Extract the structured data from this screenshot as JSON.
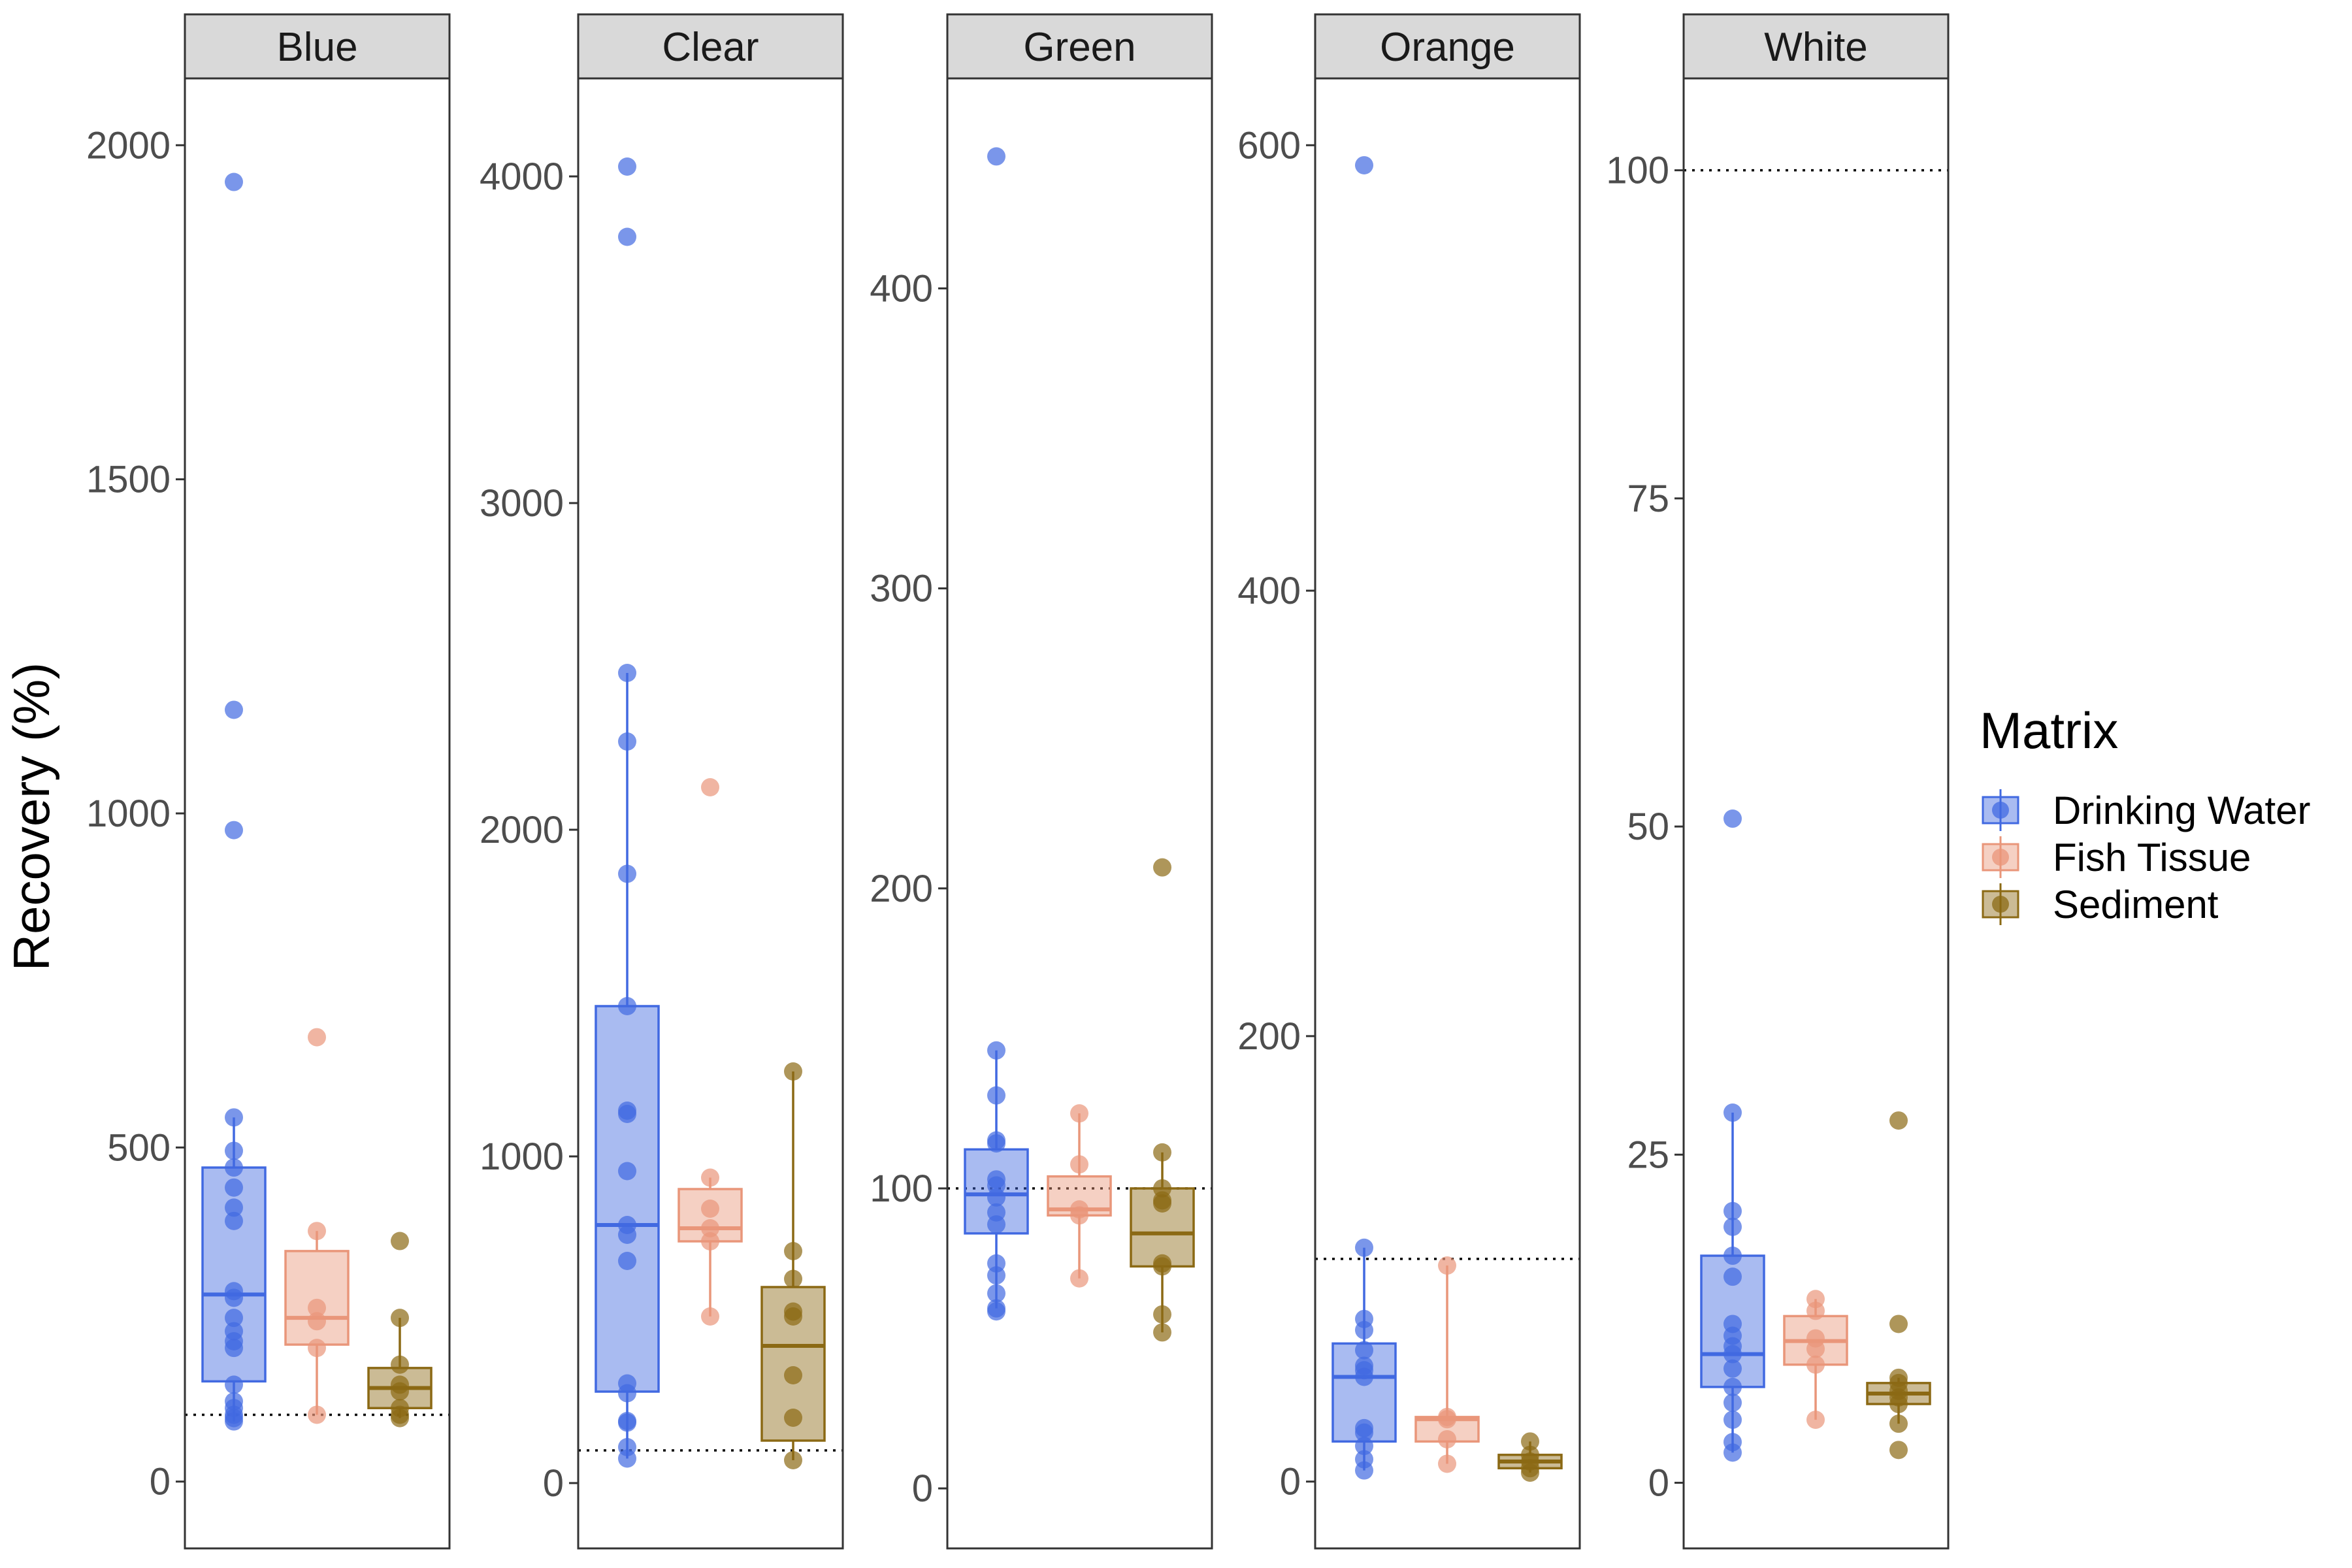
{
  "chart_data": {
    "type": "box",
    "ylabel": "Recovery (%)",
    "legend": {
      "title": "Matrix",
      "position": "right",
      "entries": [
        "Drinking Water",
        "Fish Tissue",
        "Sediment"
      ]
    },
    "colors": {
      "Drinking Water": "#4169e1",
      "Fish Tissue": "#e9967a",
      "Sediment": "#8b6914"
    },
    "facets": [
      {
        "name": "Blue",
        "ylim": [
          -100,
          2100
        ],
        "yticks": [
          0,
          500,
          1000,
          1500,
          2000
        ],
        "reference_line": 100,
        "groups": [
          {
            "matrix": "Drinking Water",
            "q1": 150,
            "median": 280,
            "q3": 470,
            "whisker_low": 90,
            "whisker_high": 545,
            "points": [
              1945,
              1155,
              975,
              545,
              495,
              470,
              440,
              410,
              390,
              285,
              275,
              245,
              225,
              210,
              200,
              145,
              120,
              110,
              100,
              95,
              90
            ]
          },
          {
            "matrix": "Fish Tissue",
            "q1": 205,
            "median": 245,
            "q3": 345,
            "whisker_low": 100,
            "whisker_high": 375,
            "points": [
              665,
              375,
              260,
              240,
              200,
              100
            ]
          },
          {
            "matrix": "Sediment",
            "q1": 110,
            "median": 140,
            "q3": 170,
            "whisker_low": 95,
            "whisker_high": 245,
            "points": [
              360,
              245,
              175,
              145,
              135,
              110,
              100,
              95
            ]
          }
        ]
      },
      {
        "name": "Clear",
        "ylim": [
          -200,
          4300
        ],
        "yticks": [
          0,
          1000,
          2000,
          3000,
          4000
        ],
        "reference_line": 100,
        "groups": [
          {
            "matrix": "Drinking Water",
            "q1": 280,
            "median": 790,
            "q3": 1460,
            "whisker_low": 75,
            "whisker_high": 2480,
            "points": [
              4030,
              3815,
              2480,
              2270,
              1865,
              1460,
              1140,
              1130,
              955,
              790,
              760,
              680,
              305,
              275,
              190,
              185,
              110,
              75
            ]
          },
          {
            "matrix": "Fish Tissue",
            "q1": 740,
            "median": 780,
            "q3": 900,
            "whisker_low": 510,
            "whisker_high": 935,
            "points": [
              2130,
              935,
              840,
              780,
              740,
              510
            ]
          },
          {
            "matrix": "Sediment",
            "q1": 130,
            "median": 420,
            "q3": 600,
            "whisker_low": 70,
            "whisker_high": 1260,
            "points": [
              1260,
              710,
              625,
              525,
              510,
              330,
              200,
              70
            ]
          }
        ]
      },
      {
        "name": "Green",
        "ylim": [
          -20,
          470
        ],
        "yticks": [
          0,
          100,
          200,
          300,
          400
        ],
        "reference_line": 100,
        "groups": [
          {
            "matrix": "Drinking Water",
            "q1": 85,
            "median": 98,
            "q3": 113,
            "whisker_low": 60,
            "whisker_high": 146,
            "points": [
              444,
              146,
              131,
              116,
              115,
              103,
              101,
              97,
              92,
              88,
              75,
              71,
              65,
              60,
              59
            ]
          },
          {
            "matrix": "Fish Tissue",
            "q1": 91,
            "median": 93,
            "q3": 104,
            "whisker_low": 70,
            "whisker_high": 125,
            "points": [
              125,
              108,
              93,
              91,
              70
            ]
          },
          {
            "matrix": "Sediment",
            "q1": 74,
            "median": 85,
            "q3": 100,
            "whisker_low": 52,
            "whisker_high": 112,
            "points": [
              207,
              112,
              100,
              96,
              95,
              75,
              74,
              58,
              52
            ]
          }
        ]
      },
      {
        "name": "Orange",
        "ylim": [
          -30,
          630
        ],
        "yticks": [
          0,
          200,
          400,
          600
        ],
        "reference_line": 100,
        "groups": [
          {
            "matrix": "Drinking Water",
            "q1": 18,
            "median": 47,
            "q3": 62,
            "whisker_low": 5,
            "whisker_high": 105,
            "points": [
              591,
              105,
              73,
              68,
              59,
              52,
              50,
              47,
              24,
              22,
              16,
              10,
              5
            ]
          },
          {
            "matrix": "Fish Tissue",
            "q1": 18,
            "median": 28,
            "q3": 29,
            "whisker_low": 8,
            "whisker_high": 97,
            "points": [
              97,
              29,
              28,
              19,
              8
            ]
          },
          {
            "matrix": "Sediment",
            "q1": 6,
            "median": 9,
            "q3": 12,
            "whisker_low": 4,
            "whisker_high": 18,
            "points": [
              18,
              12,
              9,
              6,
              4
            ]
          }
        ]
      },
      {
        "name": "White",
        "ylim": [
          -5,
          107
        ],
        "yticks": [
          0,
          25,
          50,
          75,
          100
        ],
        "reference_line": 100,
        "groups": [
          {
            "matrix": "Drinking Water",
            "q1": 7.3,
            "median": 9.8,
            "q3": 17.3,
            "whisker_low": 2.3,
            "whisker_high": 28.2,
            "points": [
              50.6,
              28.2,
              20.7,
              19.5,
              17.3,
              15.7,
              12.1,
              11.2,
              10.4,
              9.8,
              8.7,
              7.3,
              6.1,
              4.8,
              3.1,
              2.3
            ]
          },
          {
            "matrix": "Fish Tissue",
            "q1": 9.0,
            "median": 10.8,
            "q3": 12.7,
            "whisker_low": 4.8,
            "whisker_high": 14.0,
            "points": [
              14.0,
              13.1,
              11.0,
              10.2,
              9.0,
              4.8
            ]
          },
          {
            "matrix": "Sediment",
            "q1": 6.0,
            "median": 6.8,
            "q3": 7.6,
            "whisker_low": 4.5,
            "whisker_high": 8.0,
            "points": [
              27.6,
              12.1,
              8.0,
              7.6,
              7.0,
              6.5,
              6.0,
              4.5,
              2.5
            ]
          }
        ]
      }
    ]
  }
}
